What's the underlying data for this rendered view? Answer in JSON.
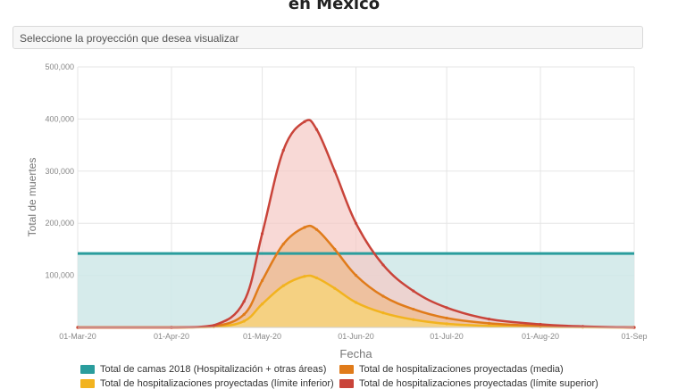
{
  "page": {
    "title": "en México"
  },
  "selector": {
    "placeholder": "Seleccione la proyección que desea visualizar"
  },
  "colors": {
    "beds": "#2a9d9d",
    "beds_fill": "#cfe8e8",
    "media": "#e07b1a",
    "media_fill": "#f0b98a",
    "lower": "#f2b31f",
    "lower_fill": "#f6d57a",
    "upper": "#c9443a",
    "upper_fill": "#f5c9c4",
    "grid": "#e5e5e5",
    "axis_text": "#888888"
  },
  "chart_data": {
    "type": "area",
    "xlabel": "Fecha",
    "ylabel": "Total de muertes",
    "x_ticks": [
      "01-Mar-20",
      "01-Apr-20",
      "01-May-20",
      "01-Jun-20",
      "01-Jul-20",
      "01-Aug-20",
      "01-Sep"
    ],
    "y_ticks": [
      "500,000",
      "400,000",
      "300,000",
      "200,000",
      "100,000"
    ],
    "ylim": [
      0,
      500000
    ],
    "xlim": [
      "2020-03-01",
      "2020-09-01"
    ],
    "grid": true,
    "legend_position": "bottom",
    "series": [
      {
        "name": "Total de camas 2018 (Hospitalización + otras áreas)",
        "key": "beds",
        "x": [
          "2020-03-01",
          "2020-09-01"
        ],
        "y": [
          142000,
          142000
        ]
      },
      {
        "name": "Total de hospitalizaciones proyectadas (media)",
        "key": "media",
        "x": [
          "2020-03-01",
          "2020-04-01",
          "2020-04-15",
          "2020-04-25",
          "2020-05-01",
          "2020-05-08",
          "2020-05-15",
          "2020-05-19",
          "2020-05-25",
          "2020-06-01",
          "2020-06-10",
          "2020-06-20",
          "2020-07-01",
          "2020-07-15",
          "2020-08-01",
          "2020-08-15",
          "2020-09-01"
        ],
        "y": [
          0,
          0,
          2000,
          25000,
          90000,
          160000,
          192000,
          188000,
          150000,
          100000,
          60000,
          35000,
          18000,
          8000,
          3000,
          1000,
          0
        ]
      },
      {
        "name": "Total de hospitalizaciones proyectadas (límite inferior)",
        "key": "lower",
        "x": [
          "2020-03-01",
          "2020-04-01",
          "2020-04-15",
          "2020-04-25",
          "2020-05-01",
          "2020-05-08",
          "2020-05-15",
          "2020-05-19",
          "2020-05-25",
          "2020-06-01",
          "2020-06-10",
          "2020-06-20",
          "2020-07-01",
          "2020-07-15",
          "2020-08-01",
          "2020-08-15",
          "2020-09-01"
        ],
        "y": [
          0,
          0,
          1000,
          12000,
          45000,
          80000,
          98000,
          95000,
          75000,
          48000,
          28000,
          15000,
          7000,
          3000,
          1000,
          500,
          0
        ]
      },
      {
        "name": "Total de hospitalizaciones proyectadas (límite superior)",
        "key": "upper",
        "x": [
          "2020-03-01",
          "2020-04-01",
          "2020-04-15",
          "2020-04-25",
          "2020-05-01",
          "2020-05-08",
          "2020-05-15",
          "2020-05-19",
          "2020-05-25",
          "2020-06-01",
          "2020-06-10",
          "2020-06-20",
          "2020-07-01",
          "2020-07-15",
          "2020-08-01",
          "2020-08-15",
          "2020-09-01"
        ],
        "y": [
          0,
          0,
          4000,
          50000,
          180000,
          340000,
          395000,
          380000,
          300000,
          200000,
          120000,
          70000,
          38000,
          16000,
          6000,
          2000,
          0
        ]
      }
    ]
  }
}
